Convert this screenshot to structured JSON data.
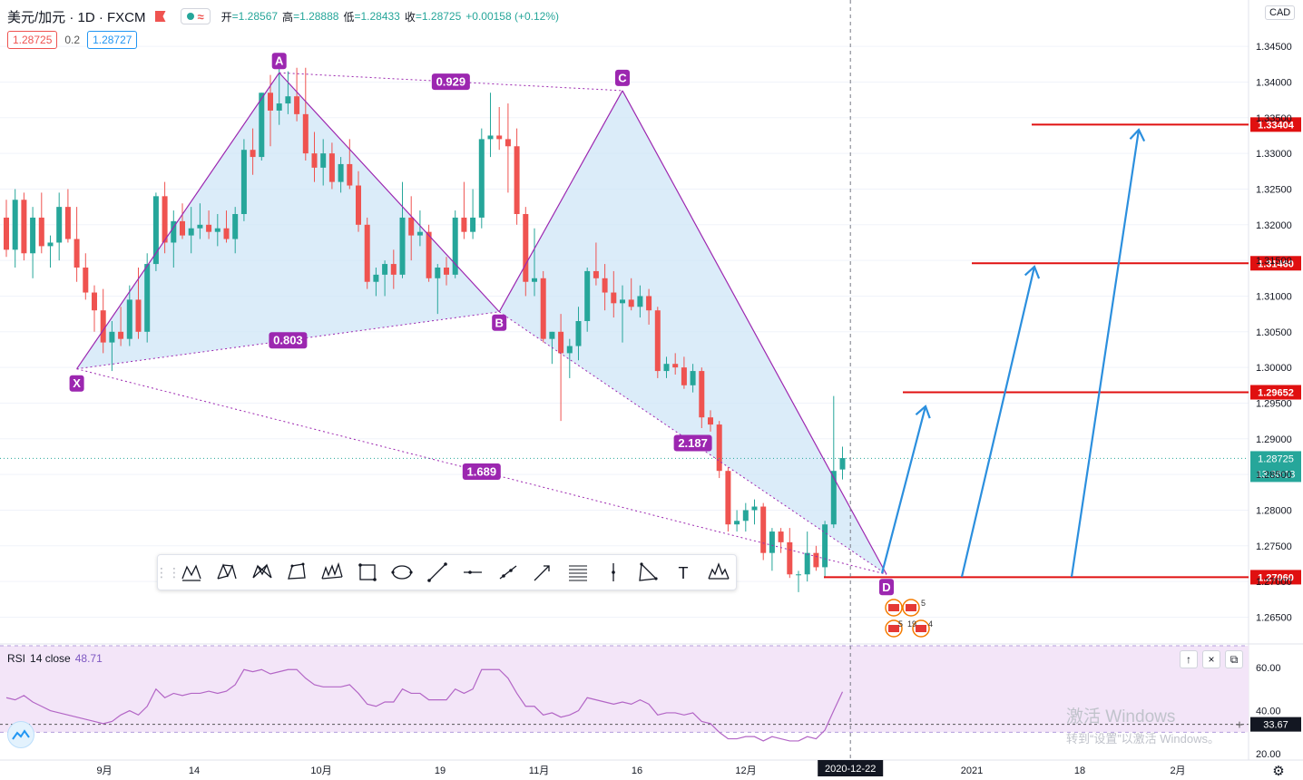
{
  "legend": {
    "symbol": "美元/加元 · 1D · FXCM",
    "open_label": "开",
    "open": "=1.28567",
    "high_label": "高",
    "high": "=1.28888",
    "low_label": "低",
    "low": "=1.28433",
    "close_label": "收",
    "close": "=1.28725",
    "change": "+0.00158 (+0.12%)",
    "wave_icon": "≈"
  },
  "prices": {
    "sell": "1.28725",
    "spread": "0.2",
    "buy": "1.28727"
  },
  "currency": "CAD",
  "colors": {
    "up": "#26a69a",
    "down": "#ef5350",
    "pattern": "#9c27b0",
    "pattern_fill": "#cfe6f7",
    "level": "#e01010",
    "arrow": "#2b8fde",
    "rsi": "#b366c6",
    "rsi_band": "#f3e5f8",
    "grid": "#f0f3fa"
  },
  "pattern": {
    "point_labels": [
      "X",
      "A",
      "B",
      "C",
      "D"
    ],
    "ratios": [
      "0.929",
      "0.803",
      "2.187",
      "1.689"
    ]
  },
  "levels": [
    "1.33404",
    "1.31460",
    "1.29652",
    "1.27060"
  ],
  "last_price": {
    "value": "1.28725",
    "countdown": "13:36:13"
  },
  "y_axis": {
    "ticks": [
      "1.34500",
      "1.34000",
      "1.33500",
      "1.33000",
      "1.32500",
      "1.32000",
      "1.31500",
      "1.31000",
      "1.30500",
      "1.30000",
      "1.29500",
      "1.29000",
      "1.28500",
      "1.28000",
      "1.27500",
      "1.27000",
      "1.26500"
    ]
  },
  "x_axis": {
    "ticks": [
      "9月",
      "14",
      "10月",
      "19",
      "11月",
      "16",
      "12月",
      "14",
      "2021",
      "18",
      "2月"
    ],
    "crosshair_date": "2020-12-22"
  },
  "rsi": {
    "label": "RSI",
    "params": "14 close",
    "value": "48.71",
    "ticks": [
      "60.00",
      "40.00",
      "20.00"
    ],
    "last_badge": "33.67",
    "up_button": "↑",
    "close_button": "×",
    "maximize_button": "⧉"
  },
  "events": {
    "count_a": "5",
    "count_b": "5",
    "count_c": "19",
    "count_d": "4"
  },
  "watermark": {
    "line1": "激活 Windows",
    "line2": "转到“设置”以激活 Windows。"
  },
  "toolbar": {
    "tools": [
      "xabcd-pattern-icon",
      "xabcd-pattern-2-icon",
      "cypher-pattern-icon",
      "abcd-pattern-icon",
      "three-drives-icon",
      "rectangle-icon",
      "ellipse-icon",
      "trend-line-icon",
      "horizontal-line-icon",
      "ray-icon",
      "arrow-icon",
      "parallel-channel-icon",
      "vertical-line-icon",
      "triangle-pattern-icon",
      "text-icon",
      "head-shoulders-icon"
    ],
    "text_tool_glyph": "T"
  },
  "chart_data": {
    "type": "candlestick",
    "symbol": "USD/CAD",
    "interval": "1D",
    "y_range": [
      1.2615,
      1.3515
    ],
    "candles": [
      [
        1.321,
        1.3235,
        1.3155,
        1.3165
      ],
      [
        1.3165,
        1.325,
        1.314,
        1.3235
      ],
      [
        1.3235,
        1.3245,
        1.315,
        1.316
      ],
      [
        1.316,
        1.3225,
        1.3125,
        1.321
      ],
      [
        1.321,
        1.3245,
        1.316,
        1.317
      ],
      [
        1.317,
        1.3185,
        1.314,
        1.3175
      ],
      [
        1.3175,
        1.3245,
        1.315,
        1.3225
      ],
      [
        1.3225,
        1.325,
        1.3175,
        1.318
      ],
      [
        1.318,
        1.3225,
        1.312,
        1.314
      ],
      [
        1.314,
        1.316,
        1.3095,
        1.3105
      ],
      [
        1.3105,
        1.3115,
        1.305,
        1.308
      ],
      [
        1.308,
        1.311,
        1.302,
        1.3035
      ],
      [
        1.3035,
        1.3065,
        1.2995,
        1.305
      ],
      [
        1.305,
        1.3085,
        1.303,
        1.304
      ],
      [
        1.304,
        1.3115,
        1.303,
        1.3095
      ],
      [
        1.3095,
        1.314,
        1.304,
        1.305
      ],
      [
        1.305,
        1.316,
        1.3035,
        1.3145
      ],
      [
        1.3145,
        1.3245,
        1.3135,
        1.324
      ],
      [
        1.324,
        1.326,
        1.316,
        1.3175
      ],
      [
        1.3175,
        1.322,
        1.314,
        1.3205
      ],
      [
        1.3205,
        1.323,
        1.318,
        1.3185
      ],
      [
        1.3185,
        1.3225,
        1.316,
        1.3195
      ],
      [
        1.3195,
        1.323,
        1.318,
        1.32
      ],
      [
        1.32,
        1.322,
        1.318,
        1.319
      ],
      [
        1.319,
        1.3215,
        1.317,
        1.3195
      ],
      [
        1.3195,
        1.322,
        1.3175,
        1.318
      ],
      [
        1.318,
        1.3225,
        1.316,
        1.3215
      ],
      [
        1.3215,
        1.332,
        1.3205,
        1.3305
      ],
      [
        1.3305,
        1.3335,
        1.327,
        1.3295
      ],
      [
        1.3295,
        1.3385,
        1.329,
        1.3385
      ],
      [
        1.3385,
        1.341,
        1.331,
        1.336
      ],
      [
        1.336,
        1.342,
        1.334,
        1.337
      ],
      [
        1.337,
        1.3415,
        1.3355,
        1.338
      ],
      [
        1.338,
        1.342,
        1.3345,
        1.3355
      ],
      [
        1.3355,
        1.342,
        1.329,
        1.33
      ],
      [
        1.33,
        1.333,
        1.326,
        1.328
      ],
      [
        1.328,
        1.332,
        1.3255,
        1.33
      ],
      [
        1.33,
        1.3315,
        1.325,
        1.326
      ],
      [
        1.326,
        1.3295,
        1.3245,
        1.3285
      ],
      [
        1.3285,
        1.332,
        1.325,
        1.3255
      ],
      [
        1.3255,
        1.3275,
        1.319,
        1.32
      ],
      [
        1.32,
        1.321,
        1.311,
        1.312
      ],
      [
        1.312,
        1.314,
        1.31,
        1.313
      ],
      [
        1.313,
        1.315,
        1.31,
        1.3145
      ],
      [
        1.3145,
        1.3165,
        1.311,
        1.313
      ],
      [
        1.313,
        1.326,
        1.3125,
        1.321
      ],
      [
        1.321,
        1.324,
        1.315,
        1.3185
      ],
      [
        1.3185,
        1.322,
        1.317,
        1.319
      ],
      [
        1.319,
        1.32,
        1.312,
        1.3125
      ],
      [
        1.3125,
        1.3145,
        1.3075,
        1.314
      ],
      [
        1.314,
        1.3155,
        1.3115,
        1.313
      ],
      [
        1.313,
        1.322,
        1.3125,
        1.321
      ],
      [
        1.321,
        1.326,
        1.318,
        1.319
      ],
      [
        1.319,
        1.325,
        1.318,
        1.321
      ],
      [
        1.321,
        1.3335,
        1.3195,
        1.332
      ],
      [
        1.332,
        1.3385,
        1.3295,
        1.3325
      ],
      [
        1.3325,
        1.3365,
        1.3305,
        1.332
      ],
      [
        1.332,
        1.337,
        1.3245,
        1.331
      ],
      [
        1.331,
        1.3335,
        1.32,
        1.3215
      ],
      [
        1.3215,
        1.3225,
        1.31,
        1.312
      ],
      [
        1.312,
        1.3195,
        1.31,
        1.3125
      ],
      [
        1.3125,
        1.3135,
        1.3035,
        1.304
      ],
      [
        1.304,
        1.305,
        1.3005,
        1.305
      ],
      [
        1.305,
        1.3075,
        1.2925,
        1.302
      ],
      [
        1.302,
        1.304,
        1.2985,
        1.303
      ],
      [
        1.303,
        1.3085,
        1.301,
        1.3065
      ],
      [
        1.3065,
        1.314,
        1.305,
        1.3135
      ],
      [
        1.3135,
        1.3175,
        1.3115,
        1.3125
      ],
      [
        1.3125,
        1.3145,
        1.308,
        1.3105
      ],
      [
        1.3105,
        1.3135,
        1.307,
        1.309
      ],
      [
        1.309,
        1.3115,
        1.3035,
        1.3095
      ],
      [
        1.3095,
        1.3125,
        1.308,
        1.3085
      ],
      [
        1.3085,
        1.3115,
        1.307,
        1.31
      ],
      [
        1.31,
        1.311,
        1.306,
        1.308
      ],
      [
        1.308,
        1.3085,
        1.2985,
        1.2995
      ],
      [
        1.2995,
        1.3015,
        1.2985,
        1.3005
      ],
      [
        1.3005,
        1.302,
        1.299,
        1.3
      ],
      [
        1.3,
        1.3015,
        1.297,
        1.2975
      ],
      [
        1.2975,
        1.3005,
        1.2965,
        1.2995
      ],
      [
        1.2995,
        1.3,
        1.2915,
        1.293
      ],
      [
        1.293,
        1.294,
        1.291,
        1.292
      ],
      [
        1.292,
        1.2925,
        1.2845,
        1.2855
      ],
      [
        1.2855,
        1.286,
        1.277,
        1.278
      ],
      [
        1.278,
        1.28,
        1.277,
        1.2785
      ],
      [
        1.2785,
        1.281,
        1.277,
        1.28
      ],
      [
        1.28,
        1.2815,
        1.278,
        1.2805
      ],
      [
        1.2805,
        1.281,
        1.273,
        1.274
      ],
      [
        1.274,
        1.2775,
        1.2715,
        1.277
      ],
      [
        1.277,
        1.2775,
        1.274,
        1.2755
      ],
      [
        1.2755,
        1.2775,
        1.2705,
        1.271
      ],
      [
        1.271,
        1.2715,
        1.2685,
        1.271
      ],
      [
        1.271,
        1.277,
        1.27,
        1.274
      ],
      [
        1.274,
        1.275,
        1.2715,
        1.272
      ],
      [
        1.272,
        1.2785,
        1.2705,
        1.278
      ],
      [
        1.278,
        1.296,
        1.2775,
        1.2855
      ],
      [
        1.2857,
        1.2889,
        1.2843,
        1.2873
      ]
    ],
    "rsi": [
      46,
      45,
      47,
      44,
      42,
      40,
      39,
      38,
      37,
      36,
      35,
      34,
      35,
      38,
      40,
      38,
      42,
      50,
      46,
      48,
      47,
      48,
      48,
      49,
      48,
      49,
      52,
      59,
      58,
      59,
      57,
      58,
      59,
      59,
      55,
      52,
      51,
      51,
      51,
      52,
      48,
      43,
      42,
      44,
      44,
      50,
      48,
      48,
      45,
      45,
      45,
      50,
      48,
      50,
      59,
      59,
      59,
      55,
      48,
      42,
      42,
      38,
      39,
      37,
      38,
      40,
      46,
      45,
      44,
      43,
      44,
      43,
      45,
      43,
      38,
      39,
      39,
      38,
      39,
      35,
      34,
      30,
      27,
      27,
      28,
      28,
      26,
      28,
      27,
      26,
      26,
      28,
      27,
      31,
      40,
      48.71
    ],
    "rsi_range": [
      18,
      70
    ],
    "rsi_band": [
      30,
      70
    ],
    "pattern_points": {
      "X": {
        "bar": 8,
        "price": 1.2998
      },
      "A": {
        "bar": 31,
        "price": 1.3413
      },
      "B": {
        "bar": 56,
        "price": 1.3078
      },
      "C": {
        "bar": 70,
        "price": 1.3388
      },
      "D": {
        "bar": 100,
        "price": 1.271
      }
    },
    "last_bar_index": 96,
    "target_levels": [
      1.33404,
      1.3146,
      1.29652,
      1.2706
    ],
    "rsi_reference_level": 33.67
  }
}
